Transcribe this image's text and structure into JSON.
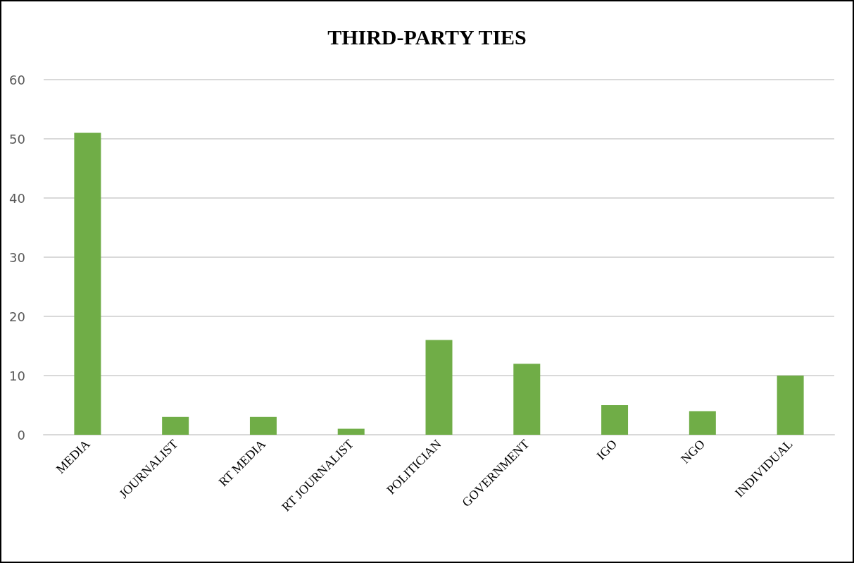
{
  "chart_data": {
    "type": "bar",
    "title": "THIRD-PARTY TIES",
    "categories": [
      "MEDIA",
      "JOURNALIST",
      "RT MEDIA",
      "RT JOURNALIST",
      "POLITICIAN",
      "GOVERNMENT",
      "IGO",
      "NGO",
      "INDIVIDUAL"
    ],
    "values": [
      51,
      3,
      3,
      1,
      16,
      12,
      5,
      4,
      10
    ],
    "color": "#70ad47",
    "ylim": [
      0,
      60
    ],
    "yticks": [
      0,
      10,
      20,
      30,
      40,
      50,
      60
    ],
    "grid": "y"
  }
}
